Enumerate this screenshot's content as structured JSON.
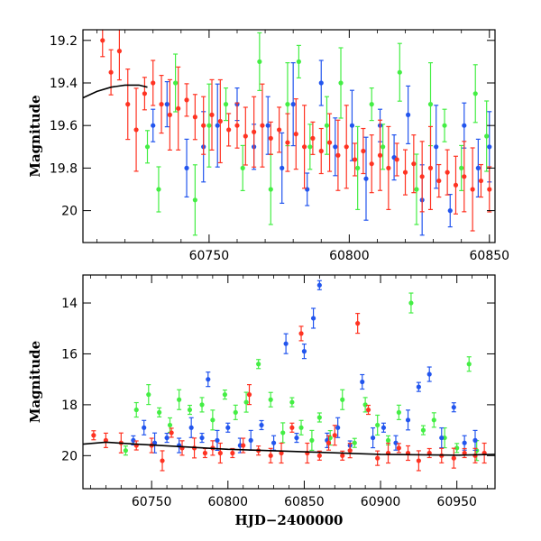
{
  "colors": {
    "green": "#44ee44",
    "blue": "#2255ee",
    "red": "#ff3322",
    "model": "#000000",
    "axis": "#000000"
  },
  "chart_data": [
    {
      "type": "scatter",
      "title": "",
      "xlabel": "",
      "ylabel": "Magnitude",
      "xlim": [
        60705,
        60852
      ],
      "ylim": [
        20.15,
        19.15
      ],
      "xticks": [
        60750,
        60800,
        60850
      ],
      "yticks": [
        19.2,
        19.4,
        19.6,
        19.8,
        20
      ],
      "ytick_labels": [
        "19.2",
        "19.4",
        "19.6",
        "19.8",
        "20"
      ],
      "series": [
        {
          "name": "green",
          "color": "#44ee44",
          "points": [
            [
              60728,
              19.7
            ],
            [
              60732,
              19.9
            ],
            [
              60738,
              19.4
            ],
            [
              60745,
              19.95
            ],
            [
              60750,
              19.6
            ],
            [
              60756,
              19.5
            ],
            [
              60762,
              19.8
            ],
            [
              60768,
              19.3
            ],
            [
              60772,
              19.9
            ],
            [
              60778,
              19.5
            ],
            [
              60782,
              19.3
            ],
            [
              60786,
              19.7
            ],
            [
              60792,
              19.6
            ],
            [
              60797,
              19.4
            ],
            [
              60803,
              19.8
            ],
            [
              60808,
              19.5
            ],
            [
              60812,
              19.7
            ],
            [
              60818,
              19.35
            ],
            [
              60824,
              19.9
            ],
            [
              60829,
              19.5
            ],
            [
              60834,
              19.6
            ],
            [
              60840,
              19.8
            ],
            [
              60845,
              19.45
            ],
            [
              60849,
              19.65
            ]
          ]
        },
        {
          "name": "blue",
          "color": "#2255ee",
          "points": [
            [
              60730,
              19.6
            ],
            [
              60735,
              19.5
            ],
            [
              60742,
              19.8
            ],
            [
              60748,
              19.7
            ],
            [
              60753,
              19.6
            ],
            [
              60760,
              19.5
            ],
            [
              60766,
              19.7
            ],
            [
              60771,
              19.6
            ],
            [
              60776,
              19.8
            ],
            [
              60780,
              19.5
            ],
            [
              60785,
              19.9
            ],
            [
              60790,
              19.4
            ],
            [
              60795,
              19.7
            ],
            [
              60801,
              19.6
            ],
            [
              60806,
              19.85
            ],
            [
              60811,
              19.6
            ],
            [
              60816,
              19.75
            ],
            [
              60821,
              19.55
            ],
            [
              60826,
              19.95
            ],
            [
              60831,
              19.7
            ],
            [
              60836,
              20.0
            ],
            [
              60841,
              19.6
            ],
            [
              60846,
              19.8
            ],
            [
              60850,
              19.7
            ]
          ]
        },
        {
          "name": "red",
          "color": "#ff3322",
          "points": [
            [
              60712,
              19.2
            ],
            [
              60715,
              19.35
            ],
            [
              60718,
              19.25
            ],
            [
              60721,
              19.5
            ],
            [
              60724,
              19.62
            ],
            [
              60727,
              19.45
            ],
            [
              60730,
              19.4
            ],
            [
              60733,
              19.5
            ],
            [
              60736,
              19.55
            ],
            [
              60739,
              19.52
            ],
            [
              60742,
              19.48
            ],
            [
              60745,
              19.56
            ],
            [
              60748,
              19.6
            ],
            [
              60751,
              19.55
            ],
            [
              60754,
              19.58
            ],
            [
              60757,
              19.62
            ],
            [
              60760,
              19.6
            ],
            [
              60763,
              19.65
            ],
            [
              60766,
              19.63
            ],
            [
              60769,
              19.6
            ],
            [
              60772,
              19.66
            ],
            [
              60775,
              19.62
            ],
            [
              60778,
              19.68
            ],
            [
              60781,
              19.64
            ],
            [
              60784,
              19.7
            ],
            [
              60787,
              19.66
            ],
            [
              60790,
              19.72
            ],
            [
              60793,
              19.68
            ],
            [
              60796,
              19.74
            ],
            [
              60799,
              19.7
            ],
            [
              60802,
              19.76
            ],
            [
              60805,
              19.72
            ],
            [
              60808,
              19.78
            ],
            [
              60811,
              19.74
            ],
            [
              60814,
              19.8
            ],
            [
              60817,
              19.76
            ],
            [
              60820,
              19.82
            ],
            [
              60823,
              19.78
            ],
            [
              60826,
              19.84
            ],
            [
              60829,
              19.8
            ],
            [
              60832,
              19.86
            ],
            [
              60835,
              19.82
            ],
            [
              60838,
              19.88
            ],
            [
              60841,
              19.84
            ],
            [
              60844,
              19.9
            ],
            [
              60847,
              19.86
            ],
            [
              60850,
              19.9
            ]
          ]
        }
      ],
      "model_curve": [
        [
          60705,
          19.47
        ],
        [
          60710,
          19.44
        ],
        [
          60715,
          19.42
        ],
        [
          60720,
          19.41
        ],
        [
          60725,
          19.41
        ],
        [
          60728,
          19.42
        ]
      ]
    },
    {
      "type": "scatter",
      "title": "",
      "xlabel": "HJD−2400000",
      "ylabel": "Magnitude",
      "xlim": [
        60705,
        60975
      ],
      "ylim": [
        21.3,
        12.9
      ],
      "xticks": [
        60750,
        60800,
        60850,
        60900,
        60950
      ],
      "yticks": [
        14,
        16,
        18,
        20
      ],
      "series": [
        {
          "name": "green",
          "color": "#44ee44",
          "points": [
            [
              60733,
              19.8
            ],
            [
              60740,
              18.2
            ],
            [
              60748,
              17.6
            ],
            [
              60755,
              18.3
            ],
            [
              60762,
              18.8
            ],
            [
              60768,
              17.8
            ],
            [
              60775,
              18.2
            ],
            [
              60783,
              18.0
            ],
            [
              60790,
              18.6
            ],
            [
              60798,
              17.6
            ],
            [
              60805,
              18.3
            ],
            [
              60812,
              17.9
            ],
            [
              60820,
              16.4
            ],
            [
              60828,
              17.8
            ],
            [
              60836,
              19.1
            ],
            [
              60842,
              17.9
            ],
            [
              60848,
              18.9
            ],
            [
              60855,
              19.4
            ],
            [
              60860,
              18.5
            ],
            [
              60867,
              19.3
            ],
            [
              60875,
              17.8
            ],
            [
              60883,
              19.5
            ],
            [
              60890,
              18.0
            ],
            [
              60898,
              18.8
            ],
            [
              60905,
              19.4
            ],
            [
              60912,
              18.3
            ],
            [
              60920,
              14.0
            ],
            [
              60928,
              19.0
            ],
            [
              60935,
              18.6
            ],
            [
              60942,
              19.3
            ],
            [
              60950,
              19.7
            ],
            [
              60958,
              16.4
            ],
            [
              60963,
              19.8
            ]
          ]
        },
        {
          "name": "blue",
          "color": "#2255ee",
          "points": [
            [
              60738,
              19.4
            ],
            [
              60745,
              18.9
            ],
            [
              60752,
              19.5
            ],
            [
              60760,
              19.3
            ],
            [
              60768,
              19.6
            ],
            [
              60776,
              18.9
            ],
            [
              60783,
              19.3
            ],
            [
              60787,
              17.0
            ],
            [
              60793,
              19.4
            ],
            [
              60800,
              18.9
            ],
            [
              60808,
              19.6
            ],
            [
              60815,
              19.4
            ],
            [
              60822,
              18.8
            ],
            [
              60830,
              19.5
            ],
            [
              60838,
              15.6
            ],
            [
              60845,
              19.3
            ],
            [
              60850,
              15.9
            ],
            [
              60856,
              14.6
            ],
            [
              60860,
              13.3
            ],
            [
              60865,
              19.4
            ],
            [
              60872,
              18.9
            ],
            [
              60880,
              19.6
            ],
            [
              60888,
              17.1
            ],
            [
              60895,
              19.3
            ],
            [
              60902,
              18.9
            ],
            [
              60910,
              19.5
            ],
            [
              60918,
              18.6
            ],
            [
              60925,
              17.3
            ],
            [
              60932,
              16.8
            ],
            [
              60940,
              19.3
            ],
            [
              60948,
              18.1
            ],
            [
              60955,
              19.5
            ],
            [
              60962,
              19.4
            ]
          ]
        },
        {
          "name": "red",
          "color": "#ff3322",
          "points": [
            [
              60712,
              19.2
            ],
            [
              60720,
              19.4
            ],
            [
              60730,
              19.5
            ],
            [
              60740,
              19.6
            ],
            [
              60750,
              19.6
            ],
            [
              60757,
              20.2
            ],
            [
              60763,
              19.1
            ],
            [
              60770,
              19.7
            ],
            [
              60778,
              19.7
            ],
            [
              60785,
              19.9
            ],
            [
              60790,
              19.7
            ],
            [
              60795,
              19.9
            ],
            [
              60803,
              19.9
            ],
            [
              60810,
              19.6
            ],
            [
              60814,
              17.6
            ],
            [
              60820,
              19.8
            ],
            [
              60828,
              20.0
            ],
            [
              60835,
              19.9
            ],
            [
              60842,
              18.9
            ],
            [
              60848,
              15.2
            ],
            [
              60852,
              19.9
            ],
            [
              60860,
              20.0
            ],
            [
              60866,
              19.5
            ],
            [
              60870,
              19.2
            ],
            [
              60875,
              20.0
            ],
            [
              60880,
              19.8
            ],
            [
              60885,
              14.8
            ],
            [
              60892,
              18.2
            ],
            [
              60898,
              20.1
            ],
            [
              60905,
              19.9
            ],
            [
              60912,
              19.7
            ],
            [
              60918,
              19.9
            ],
            [
              60925,
              20.2
            ],
            [
              60932,
              19.9
            ],
            [
              60940,
              20.0
            ],
            [
              60948,
              20.1
            ],
            [
              60955,
              19.9
            ],
            [
              60962,
              20.0
            ],
            [
              60968,
              19.9
            ]
          ]
        }
      ],
      "model_curve": [
        [
          60705,
          19.55
        ],
        [
          60720,
          19.47
        ],
        [
          60740,
          19.55
        ],
        [
          60800,
          19.75
        ],
        [
          60850,
          19.85
        ],
        [
          60900,
          19.95
        ],
        [
          60950,
          19.98
        ],
        [
          60975,
          19.95
        ]
      ]
    }
  ]
}
